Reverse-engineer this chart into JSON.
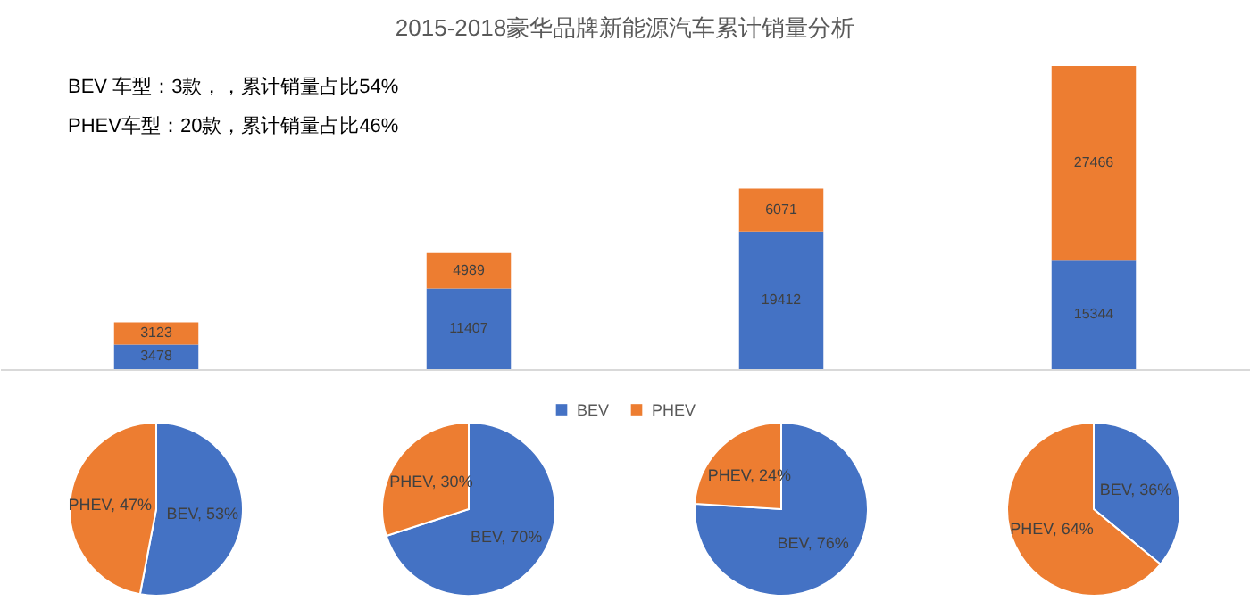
{
  "chart_data": [
    {
      "type": "bar",
      "title": "2015-2018豪华品牌新能源汽车累计销量分析",
      "annotations": [
        "BEV 车型：3款，，累计销量占比54%",
        "PHEV车型：20款，累计销量占比46%"
      ],
      "categories": [
        null,
        null,
        null,
        null
      ],
      "stacked": true,
      "data_labels": true,
      "legend": "bottom",
      "series": [
        {
          "name": "BEV",
          "color": "#4472c4",
          "values": [
            3478,
            11407,
            19412,
            15344
          ]
        },
        {
          "name": "PHEV",
          "color": "#ed7d31",
          "values": [
            3123,
            4989,
            6071,
            27466
          ]
        }
      ]
    },
    {
      "type": "pie",
      "categories": [
        "BEV",
        "PHEV"
      ],
      "values": [
        53,
        47
      ],
      "colors": [
        "#4472c4",
        "#ed7d31"
      ],
      "value_labels": [
        "53%",
        "47%"
      ]
    },
    {
      "type": "pie",
      "categories": [
        "BEV",
        "PHEV"
      ],
      "values": [
        70,
        30
      ],
      "colors": [
        "#4472c4",
        "#ed7d31"
      ],
      "value_labels": [
        "70%",
        "30%"
      ]
    },
    {
      "type": "pie",
      "categories": [
        "BEV",
        "PHEV"
      ],
      "values": [
        76,
        24
      ],
      "colors": [
        "#4472c4",
        "#ed7d31"
      ],
      "value_labels": [
        "76%",
        "24%"
      ]
    },
    {
      "type": "pie",
      "categories": [
        "BEV",
        "PHEV"
      ],
      "values": [
        36,
        64
      ],
      "colors": [
        "#4472c4",
        "#ed7d31"
      ],
      "value_labels": [
        "36%",
        "64%"
      ]
    }
  ]
}
